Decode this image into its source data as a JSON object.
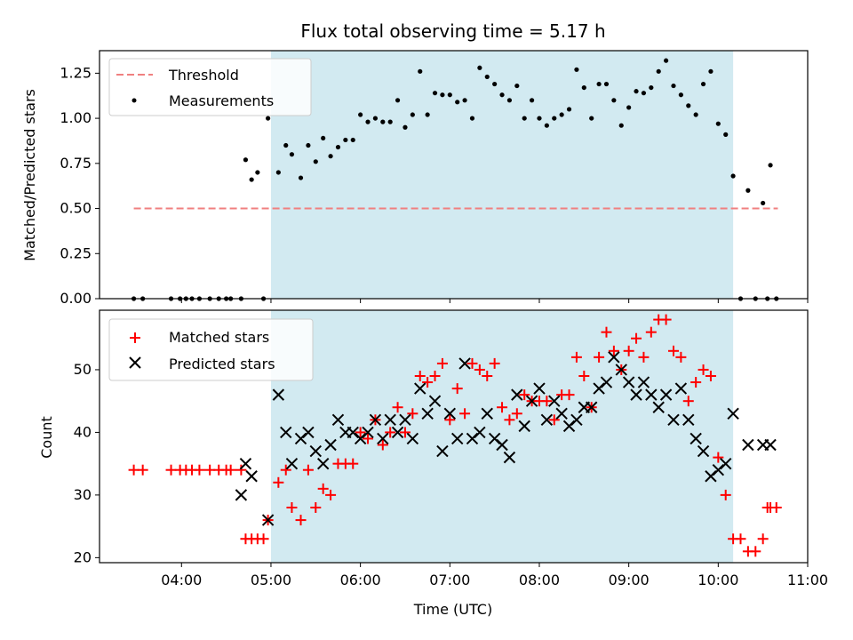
{
  "chart_data": [
    {
      "type": "scatter",
      "title": "Flux total observing time = 5.17 h",
      "xlabel": "",
      "ylabel": "Matched/Predicted stars",
      "xlim": [
        "03:05",
        "11:00"
      ],
      "ylim": [
        0,
        1.375
      ],
      "yticks": [
        "0.00",
        "0.25",
        "0.50",
        "0.75",
        "1.00",
        "1.25"
      ],
      "shaded_interval": [
        "05:00",
        "10:10"
      ],
      "shade_color": "#add8e6",
      "legend": {
        "position": "top-left",
        "entries": [
          "Threshold",
          "Measurements"
        ]
      },
      "series": [
        {
          "name": "Threshold",
          "style": "dashed-line",
          "color": "#f08080",
          "x": [
            "03:28",
            "10:40"
          ],
          "y": [
            0.5,
            0.5
          ]
        },
        {
          "name": "Measurements",
          "style": "dot",
          "color": "#000000",
          "x": [
            "03:28",
            "03:34",
            "03:53",
            "03:59",
            "04:03",
            "04:07",
            "04:12",
            "04:19",
            "04:25",
            "04:30",
            "04:33",
            "04:40",
            "04:43",
            "04:47",
            "04:51",
            "04:55",
            "04:58",
            "05:05",
            "05:10",
            "05:14",
            "05:20",
            "05:25",
            "05:30",
            "05:35",
            "05:40",
            "05:45",
            "05:50",
            "05:55",
            "06:00",
            "06:05",
            "06:10",
            "06:15",
            "06:20",
            "06:25",
            "06:30",
            "06:35",
            "06:40",
            "06:45",
            "06:50",
            "06:55",
            "07:00",
            "07:05",
            "07:10",
            "07:15",
            "07:20",
            "07:25",
            "07:30",
            "07:35",
            "07:40",
            "07:45",
            "07:50",
            "07:55",
            "08:00",
            "08:05",
            "08:10",
            "08:15",
            "08:20",
            "08:25",
            "08:30",
            "08:35",
            "08:40",
            "08:45",
            "08:50",
            "08:55",
            "09:00",
            "09:05",
            "09:10",
            "09:15",
            "09:20",
            "09:25",
            "09:30",
            "09:35",
            "09:40",
            "09:45",
            "09:50",
            "09:55",
            "10:00",
            "10:05",
            "10:10",
            "10:15",
            "10:20",
            "10:25",
            "10:30",
            "10:33",
            "10:35",
            "10:39"
          ],
          "y": [
            0,
            0,
            0,
            0,
            0,
            0,
            0,
            0,
            0,
            0,
            0,
            0,
            0.77,
            0.66,
            0.7,
            0,
            1.0,
            0.7,
            0.85,
            0.8,
            0.67,
            0.85,
            0.76,
            0.89,
            0.79,
            0.84,
            0.88,
            0.88,
            1.02,
            0.98,
            1.0,
            0.98,
            0.98,
            1.1,
            0.95,
            1.02,
            1.26,
            1.02,
            1.14,
            1.13,
            1.13,
            1.09,
            1.1,
            1.0,
            1.28,
            1.23,
            1.19,
            1.13,
            1.1,
            1.18,
            1.0,
            1.1,
            1.0,
            0.96,
            1.0,
            1.02,
            1.05,
            1.27,
            1.17,
            1.0,
            1.19,
            1.19,
            1.1,
            0.96,
            1.06,
            1.15,
            1.14,
            1.17,
            1.26,
            1.32,
            1.18,
            1.13,
            1.07,
            1.02,
            1.19,
            1.26,
            0.97,
            0.91,
            0.68,
            0,
            0.6,
            0,
            0.53,
            0,
            0.74,
            0
          ]
        }
      ]
    },
    {
      "type": "scatter",
      "title": "",
      "xlabel": "Time (UTC)",
      "ylabel": "Count",
      "xlim": [
        "03:05",
        "11:00"
      ],
      "ylim": [
        19.2,
        59.5
      ],
      "xticks": [
        "04:00",
        "05:00",
        "06:00",
        "07:00",
        "08:00",
        "09:00",
        "10:00",
        "11:00"
      ],
      "yticks": [
        "20",
        "30",
        "40",
        "50"
      ],
      "shaded_interval": [
        "05:00",
        "10:10"
      ],
      "shade_color": "#add8e6",
      "legend": {
        "position": "top-left",
        "entries": [
          "Matched stars",
          "Predicted stars"
        ]
      },
      "series": [
        {
          "name": "Matched stars",
          "marker": "plus",
          "color": "#ff0000",
          "x": [
            "03:28",
            "03:34",
            "03:53",
            "03:59",
            "04:03",
            "04:07",
            "04:12",
            "04:19",
            "04:25",
            "04:30",
            "04:33",
            "04:40",
            "04:43",
            "04:47",
            "04:51",
            "04:55",
            "04:58",
            "05:05",
            "05:10",
            "05:14",
            "05:20",
            "05:25",
            "05:30",
            "05:35",
            "05:40",
            "05:45",
            "05:50",
            "05:55",
            "06:00",
            "06:05",
            "06:10",
            "06:15",
            "06:20",
            "06:25",
            "06:30",
            "06:35",
            "06:40",
            "06:45",
            "06:50",
            "06:55",
            "07:00",
            "07:05",
            "07:10",
            "07:15",
            "07:20",
            "07:25",
            "07:30",
            "07:35",
            "07:40",
            "07:45",
            "07:50",
            "07:55",
            "08:00",
            "08:05",
            "08:10",
            "08:15",
            "08:20",
            "08:25",
            "08:30",
            "08:35",
            "08:40",
            "08:45",
            "08:50",
            "08:55",
            "09:00",
            "09:05",
            "09:10",
            "09:15",
            "09:20",
            "09:25",
            "09:30",
            "09:35",
            "09:40",
            "09:45",
            "09:50",
            "09:55",
            "10:00",
            "10:05",
            "10:10",
            "10:15",
            "10:20",
            "10:25",
            "10:30",
            "10:33",
            "10:35",
            "10:39"
          ],
          "y": [
            34,
            34,
            34,
            34,
            34,
            34,
            34,
            34,
            34,
            34,
            34,
            34,
            23,
            23,
            23,
            23,
            26,
            32,
            34,
            28,
            26,
            34,
            28,
            31,
            30,
            35,
            35,
            35,
            40,
            39,
            42,
            38,
            40,
            44,
            40,
            43,
            49,
            48,
            49,
            51,
            42,
            47,
            43,
            51,
            50,
            49,
            51,
            44,
            42,
            43,
            46,
            45,
            45,
            45,
            42,
            46,
            46,
            52,
            49,
            44,
            52,
            56,
            53,
            50,
            53,
            55,
            52,
            56,
            58,
            58,
            53,
            52,
            45,
            48,
            50,
            49,
            36,
            30,
            23,
            23,
            21,
            21,
            23,
            28,
            28,
            28
          ]
        },
        {
          "name": "Predicted stars",
          "marker": "x",
          "color": "#000000",
          "x": [
            "04:40",
            "04:43",
            "04:47",
            "04:58",
            "05:05",
            "05:10",
            "05:14",
            "05:20",
            "05:25",
            "05:30",
            "05:35",
            "05:40",
            "05:45",
            "05:50",
            "05:55",
            "06:00",
            "06:05",
            "06:10",
            "06:15",
            "06:20",
            "06:25",
            "06:30",
            "06:35",
            "06:40",
            "06:45",
            "06:50",
            "06:55",
            "07:00",
            "07:05",
            "07:10",
            "07:15",
            "07:20",
            "07:25",
            "07:30",
            "07:35",
            "07:40",
            "07:45",
            "07:50",
            "07:55",
            "08:00",
            "08:05",
            "08:10",
            "08:15",
            "08:20",
            "08:25",
            "08:30",
            "08:35",
            "08:40",
            "08:45",
            "08:50",
            "08:55",
            "09:00",
            "09:05",
            "09:10",
            "09:15",
            "09:20",
            "09:25",
            "09:30",
            "09:35",
            "09:40",
            "09:45",
            "09:50",
            "09:55",
            "10:00",
            "10:05",
            "10:10",
            "10:20",
            "10:30",
            "10:35"
          ],
          "y": [
            30,
            35,
            33,
            26,
            46,
            40,
            35,
            39,
            40,
            37,
            35,
            38,
            42,
            40,
            40,
            39,
            40,
            42,
            39,
            42,
            40,
            42,
            39,
            47,
            43,
            45,
            37,
            43,
            39,
            51,
            39,
            40,
            43,
            39,
            38,
            36,
            46,
            41,
            45,
            47,
            42,
            45,
            43,
            41,
            42,
            44,
            44,
            47,
            48,
            52,
            50,
            48,
            46,
            48,
            46,
            44,
            46,
            42,
            47,
            42,
            39,
            37,
            33,
            34,
            35,
            43,
            38,
            38,
            38
          ]
        }
      ]
    }
  ]
}
